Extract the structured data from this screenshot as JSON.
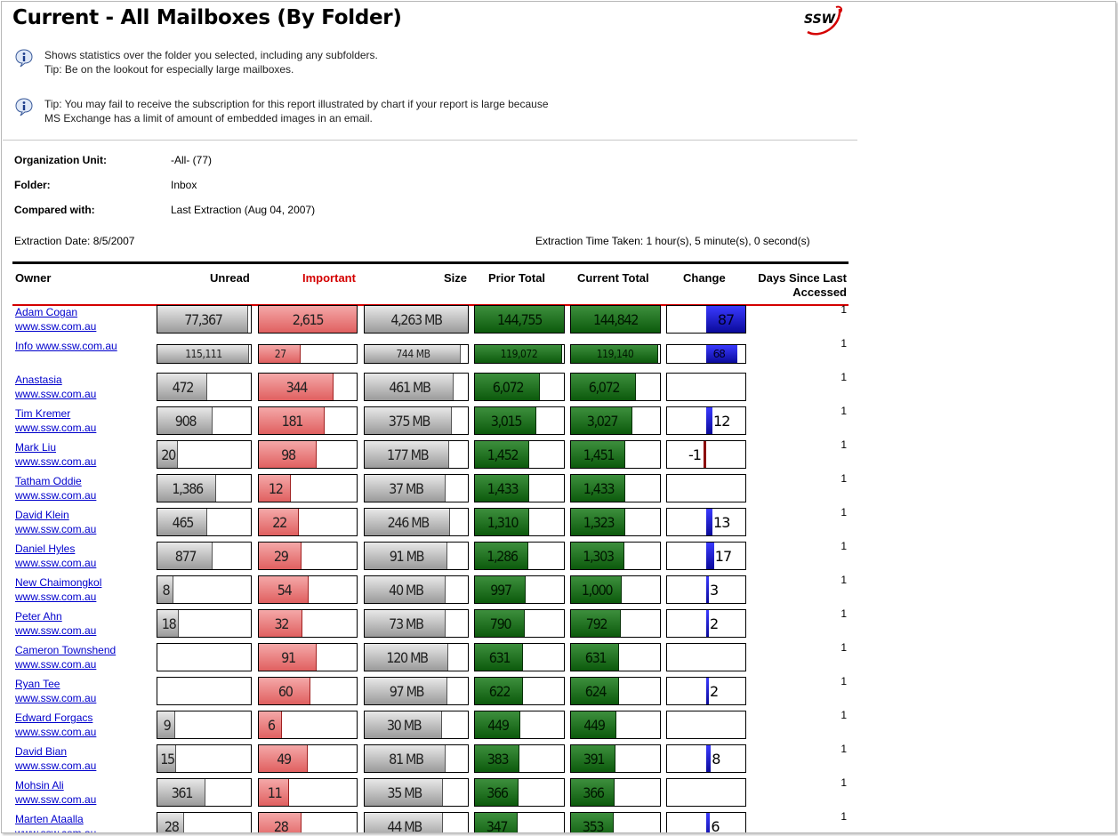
{
  "title": "Current - All Mailboxes (By Folder)",
  "logo_text": "SSW",
  "tips": [
    {
      "line1": "Shows statistics over the folder you selected, including any subfolders.",
      "line2": "Tip: Be on the lookout for especially large mailboxes."
    },
    {
      "line1": "Tip: You may fail to receive the subscription for this report illustrated by chart if your report is large because",
      "line2": "MS Exchange has a limit of amount of embedded images in an email."
    }
  ],
  "meta": {
    "org_label": "Organization Unit:",
    "org_value": "-All- (77)",
    "folder_label": "Folder:",
    "folder_value": "Inbox",
    "compared_label": "Compared with:",
    "compared_value": "Last Extraction (Aug 04, 2007)",
    "extraction_date": "Extraction Date: 8/5/2007",
    "extraction_time": "Extraction Time Taken: 1 hour(s), 5 minute(s), 0 second(s)"
  },
  "columns": {
    "owner": "Owner",
    "unread": "Unread",
    "important": "Important",
    "size": "Size",
    "prior": "Prior Total",
    "current": "Current Total",
    "change": "Change",
    "days_line1": "Days Since Last",
    "days_line2": "Accessed"
  },
  "colors": {
    "gray_bar": "#9a9a9a",
    "important_bar": "#e06060",
    "total_bar": "#0c5a0c",
    "change_pos": "#0a0a9a",
    "change_neg": "#8b0000",
    "important_header": "#d40000",
    "link": "#0000cc"
  },
  "rows": [
    {
      "name": "Adam Cogan",
      "site": "www.ssw.com.au",
      "unread": "77,367",
      "unread_frac": 0.96,
      "important": "2,615",
      "important_frac": 1.0,
      "size": "4,263 MB",
      "size_frac": 1.0,
      "prior": "144,755",
      "prior_frac": 1.0,
      "current": "144,842",
      "current_frac": 1.0,
      "change": "87",
      "change_frac": 0.52,
      "days": "1"
    },
    {
      "name": "Info www.ssw.com.au",
      "site": "",
      "unread": "115,111",
      "unread_frac": 0.97,
      "important": "27",
      "important_frac": 0.42,
      "size": "744 MB",
      "size_frac": 0.92,
      "prior": "119,072",
      "prior_frac": 0.97,
      "current": "119,140",
      "current_frac": 0.97,
      "change": "68",
      "change_frac": 0.4,
      "days": "1"
    },
    {
      "name": "Anastasia",
      "site": "www.ssw.com.au",
      "unread": "472",
      "unread_frac": 0.52,
      "important": "344",
      "important_frac": 0.75,
      "size": "461 MB",
      "size_frac": 0.85,
      "prior": "6,072",
      "prior_frac": 0.72,
      "current": "6,072",
      "current_frac": 0.72,
      "change": "",
      "change_frac": 0,
      "days": "1"
    },
    {
      "name": "Tim Kremer",
      "site": "www.ssw.com.au",
      "unread": "908",
      "unread_frac": 0.58,
      "important": "181",
      "important_frac": 0.66,
      "size": "375 MB",
      "size_frac": 0.84,
      "prior": "3,015",
      "prior_frac": 0.68,
      "current": "3,027",
      "current_frac": 0.68,
      "change": "12",
      "change_frac": 0.08,
      "days": "1"
    },
    {
      "name": "Mark Liu",
      "site": "www.ssw.com.au",
      "unread": "20",
      "unread_frac": 0.21,
      "important": "98",
      "important_frac": 0.58,
      "size": "177 MB",
      "size_frac": 0.81,
      "prior": "1,452",
      "prior_frac": 0.6,
      "current": "1,451",
      "current_frac": 0.6,
      "change": "-1",
      "change_frac": -0.02,
      "days": "1"
    },
    {
      "name": "Tatham Oddie",
      "site": "www.ssw.com.au",
      "unread": "1,386",
      "unread_frac": 0.62,
      "important": "12",
      "important_frac": 0.32,
      "size": "37 MB",
      "size_frac": 0.78,
      "prior": "1,433",
      "prior_frac": 0.6,
      "current": "1,433",
      "current_frac": 0.6,
      "change": "",
      "change_frac": 0,
      "days": "1"
    },
    {
      "name": "David Klein",
      "site": "www.ssw.com.au",
      "unread": "465",
      "unread_frac": 0.52,
      "important": "22",
      "important_frac": 0.4,
      "size": "246 MB",
      "size_frac": 0.82,
      "prior": "1,310",
      "prior_frac": 0.6,
      "current": "1,323",
      "current_frac": 0.6,
      "change": "13",
      "change_frac": 0.08,
      "days": "1"
    },
    {
      "name": "Daniel Hyles",
      "site": "www.ssw.com.au",
      "unread": "877",
      "unread_frac": 0.58,
      "important": "29",
      "important_frac": 0.43,
      "size": "91 MB",
      "size_frac": 0.79,
      "prior": "1,286",
      "prior_frac": 0.59,
      "current": "1,303",
      "current_frac": 0.59,
      "change": "17",
      "change_frac": 0.1,
      "days": "1"
    },
    {
      "name": "New Chaimongkol",
      "site": "www.ssw.com.au",
      "unread": "8",
      "unread_frac": 0.16,
      "important": "54",
      "important_frac": 0.5,
      "size": "40 MB",
      "size_frac": 0.78,
      "prior": "997",
      "prior_frac": 0.56,
      "current": "1,000",
      "current_frac": 0.56,
      "change": "3",
      "change_frac": 0.03,
      "days": "1"
    },
    {
      "name": "Peter Ahn",
      "site": "www.ssw.com.au",
      "unread": "18",
      "unread_frac": 0.22,
      "important": "32",
      "important_frac": 0.44,
      "size": "73 MB",
      "size_frac": 0.78,
      "prior": "790",
      "prior_frac": 0.55,
      "current": "792",
      "current_frac": 0.55,
      "change": "2",
      "change_frac": 0.03,
      "days": "1"
    },
    {
      "name": "Cameron Townshend",
      "site": "www.ssw.com.au",
      "unread": "",
      "unread_frac": 0,
      "important": "91",
      "important_frac": 0.58,
      "size": "120 MB",
      "size_frac": 0.8,
      "prior": "631",
      "prior_frac": 0.53,
      "current": "631",
      "current_frac": 0.53,
      "change": "",
      "change_frac": 0,
      "days": "1"
    },
    {
      "name": "Ryan Tee",
      "site": "www.ssw.com.au",
      "unread": "",
      "unread_frac": 0,
      "important": "60",
      "important_frac": 0.52,
      "size": "97 MB",
      "size_frac": 0.79,
      "prior": "622",
      "prior_frac": 0.53,
      "current": "624",
      "current_frac": 0.53,
      "change": "2",
      "change_frac": 0.03,
      "days": "1"
    },
    {
      "name": "Edward Forgacs",
      "site": "www.ssw.com.au",
      "unread": "9",
      "unread_frac": 0.18,
      "important": "6",
      "important_frac": 0.23,
      "size": "30 MB",
      "size_frac": 0.74,
      "prior": "449",
      "prior_frac": 0.5,
      "current": "449",
      "current_frac": 0.5,
      "change": "",
      "change_frac": 0,
      "days": "1"
    },
    {
      "name": "David Bian",
      "site": "www.ssw.com.au",
      "unread": "15",
      "unread_frac": 0.19,
      "important": "49",
      "important_frac": 0.49,
      "size": "81 MB",
      "size_frac": 0.78,
      "prior": "383",
      "prior_frac": 0.49,
      "current": "391",
      "current_frac": 0.49,
      "change": "8",
      "change_frac": 0.06,
      "days": "1"
    },
    {
      "name": "Mohsin Ali",
      "site": "www.ssw.com.au",
      "unread": "361",
      "unread_frac": 0.5,
      "important": "11",
      "important_frac": 0.3,
      "size": "35 MB",
      "size_frac": 0.75,
      "prior": "366",
      "prior_frac": 0.48,
      "current": "366",
      "current_frac": 0.48,
      "change": "",
      "change_frac": 0,
      "days": "1"
    },
    {
      "name": "Marten Ataalla",
      "site": "www.ssw.com.au",
      "unread": "28",
      "unread_frac": 0.28,
      "important": "28",
      "important_frac": 0.43,
      "size": "44 MB",
      "size_frac": 0.75,
      "prior": "347",
      "prior_frac": 0.47,
      "current": "353",
      "current_frac": 0.47,
      "change": "6",
      "change_frac": 0.05,
      "days": "1"
    }
  ]
}
